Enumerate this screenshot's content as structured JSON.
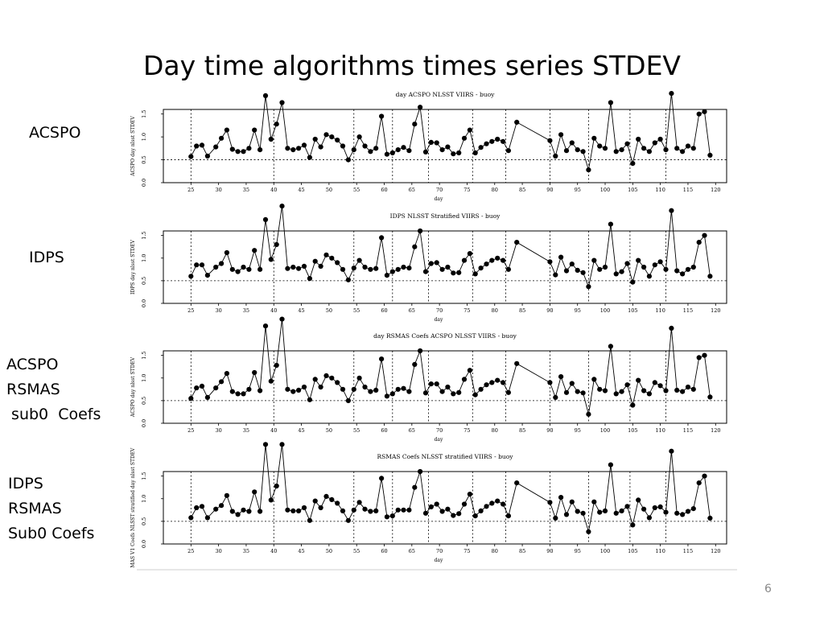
{
  "slide": {
    "title": "Day time algorithms times series STDEV",
    "page_number": "6"
  },
  "panels": [
    {
      "label": "ACSPO"
    },
    {
      "label": "IDPS"
    },
    {
      "label": "ACSPO\nRSMAS\n sub0  Coefs"
    },
    {
      "label": "IDPS\nRSMAS\nSub0 Coefs"
    }
  ],
  "chart_data": [
    {
      "type": "line",
      "title": "day ACSPO NLSST VIIRS - buoy",
      "xlabel": "day",
      "ylabel": "ACSPO day nlsst STDEV",
      "xlim": [
        20,
        122
      ],
      "ylim": [
        0,
        1.6
      ],
      "xticks": [
        25,
        30,
        35,
        40,
        45,
        50,
        55,
        60,
        65,
        70,
        75,
        80,
        85,
        90,
        95,
        100,
        105,
        110,
        115,
        120
      ],
      "yticks": [
        "0.0",
        "0.5",
        "1.0",
        "1.5"
      ],
      "reference_y": 0.5,
      "vlines": [
        25,
        40,
        54.5,
        61.5,
        68,
        76,
        82,
        90,
        97,
        104.5,
        111
      ],
      "x": [
        25,
        26,
        27,
        28,
        29.5,
        30.5,
        31.5,
        32.5,
        33.5,
        34.5,
        35.5,
        36.5,
        37.5,
        38.5,
        39.5,
        40.5,
        41.5,
        42.5,
        43.5,
        44.5,
        45.5,
        46.5,
        47.5,
        48.5,
        49.5,
        50.5,
        51.5,
        52.5,
        53.5,
        54.5,
        55.5,
        56.5,
        57.5,
        58.5,
        59.5,
        60.5,
        61.5,
        62.5,
        63.5,
        64.5,
        65.5,
        66.5,
        67.5,
        68.5,
        69.5,
        70.5,
        71.5,
        72.5,
        73.5,
        74.5,
        75.5,
        76.5,
        77.5,
        78.5,
        79.5,
        80.5,
        81.5,
        82.5,
        84,
        90,
        91,
        92,
        93,
        94,
        95,
        96,
        97,
        98,
        99,
        100,
        101,
        102,
        103,
        104,
        105,
        106,
        107,
        108,
        109,
        110,
        111,
        112,
        113,
        114,
        115,
        116,
        117,
        118,
        119
      ],
      "y": [
        0.57,
        0.8,
        0.82,
        0.58,
        0.78,
        0.97,
        1.15,
        0.73,
        0.68,
        0.68,
        0.75,
        1.15,
        0.72,
        1.9,
        0.95,
        1.28,
        1.75,
        0.75,
        0.72,
        0.75,
        0.82,
        0.55,
        0.95,
        0.78,
        1.05,
        1.0,
        0.93,
        0.8,
        0.5,
        0.72,
        1.0,
        0.8,
        0.68,
        0.75,
        1.45,
        0.62,
        0.65,
        0.72,
        0.77,
        0.7,
        1.28,
        1.65,
        0.67,
        0.88,
        0.87,
        0.72,
        0.78,
        0.63,
        0.65,
        0.97,
        1.15,
        0.65,
        0.77,
        0.85,
        0.9,
        0.95,
        0.9,
        0.7,
        1.32,
        0.92,
        0.58,
        1.05,
        0.7,
        0.87,
        0.72,
        0.68,
        0.28,
        0.97,
        0.8,
        0.75,
        1.75,
        0.68,
        0.72,
        0.85,
        0.42,
        0.95,
        0.75,
        0.68,
        0.87,
        0.95,
        0.72,
        1.95,
        0.75,
        0.68,
        0.8,
        0.75,
        1.5,
        1.55,
        0.6
      ]
    },
    {
      "type": "line",
      "title": "IDPS NLSST Stratified VIIRS - buoy",
      "xlabel": "day",
      "ylabel": "IDPS day nlsst STDEV",
      "xlim": [
        20,
        122
      ],
      "ylim": [
        0,
        1.6
      ],
      "xticks": [
        25,
        30,
        35,
        40,
        45,
        50,
        55,
        60,
        65,
        70,
        75,
        80,
        85,
        90,
        95,
        100,
        105,
        110,
        115,
        120
      ],
      "yticks": [
        "0.0",
        "0.5",
        "1.0",
        "1.5"
      ],
      "reference_y": 0.5,
      "vlines": [
        25,
        40,
        54.5,
        61.5,
        68,
        76,
        82,
        90,
        97,
        104.5,
        111
      ],
      "x": [
        25,
        26,
        27,
        28,
        29.5,
        30.5,
        31.5,
        32.5,
        33.5,
        34.5,
        35.5,
        36.5,
        37.5,
        38.5,
        39.5,
        40.5,
        41.5,
        42.5,
        43.5,
        44.5,
        45.5,
        46.5,
        47.5,
        48.5,
        49.5,
        50.5,
        51.5,
        52.5,
        53.5,
        54.5,
        55.5,
        56.5,
        57.5,
        58.5,
        59.5,
        60.5,
        61.5,
        62.5,
        63.5,
        64.5,
        65.5,
        66.5,
        67.5,
        68.5,
        69.5,
        70.5,
        71.5,
        72.5,
        73.5,
        74.5,
        75.5,
        76.5,
        77.5,
        78.5,
        79.5,
        80.5,
        81.5,
        82.5,
        84,
        90,
        91,
        92,
        93,
        94,
        95,
        96,
        97,
        98,
        99,
        100,
        101,
        102,
        103,
        104,
        105,
        106,
        107,
        108,
        109,
        110,
        111,
        112,
        113,
        114,
        115,
        116,
        117,
        118,
        119
      ],
      "y": [
        0.6,
        0.85,
        0.85,
        0.62,
        0.8,
        0.88,
        1.12,
        0.75,
        0.7,
        0.8,
        0.75,
        1.17,
        0.75,
        1.85,
        0.97,
        1.3,
        2.15,
        0.77,
        0.8,
        0.77,
        0.82,
        0.55,
        0.93,
        0.82,
        1.07,
        1.0,
        0.9,
        0.75,
        0.52,
        0.78,
        0.95,
        0.8,
        0.75,
        0.77,
        1.45,
        0.62,
        0.7,
        0.75,
        0.8,
        0.78,
        1.25,
        1.6,
        0.7,
        0.88,
        0.9,
        0.75,
        0.8,
        0.67,
        0.68,
        0.95,
        1.1,
        0.65,
        0.78,
        0.87,
        0.95,
        1.0,
        0.95,
        0.75,
        1.35,
        0.92,
        0.63,
        1.02,
        0.72,
        0.87,
        0.73,
        0.68,
        0.37,
        0.95,
        0.75,
        0.8,
        1.75,
        0.65,
        0.7,
        0.88,
        0.47,
        0.95,
        0.8,
        0.6,
        0.85,
        0.92,
        0.75,
        2.05,
        0.72,
        0.65,
        0.75,
        0.8,
        1.35,
        1.5,
        0.6
      ]
    },
    {
      "type": "line",
      "title": "day RSMAS Coefs ACSPO NLSST VIIRS - buoy",
      "xlabel": "day",
      "ylabel": "ACSPO day nlsst STDEV",
      "xlim": [
        20,
        122
      ],
      "ylim": [
        0,
        1.6
      ],
      "xticks": [
        25,
        30,
        35,
        40,
        45,
        50,
        55,
        60,
        65,
        70,
        75,
        80,
        85,
        90,
        95,
        100,
        105,
        110,
        115,
        120
      ],
      "yticks": [
        "0.0",
        "0.5",
        "1.0",
        "1.5"
      ],
      "reference_y": 0.5,
      "vlines": [
        25,
        40,
        54.5,
        61.5,
        68,
        76,
        82,
        90,
        97,
        104.5,
        111
      ],
      "x": [
        25,
        26,
        27,
        28,
        29.5,
        30.5,
        31.5,
        32.5,
        33.5,
        34.5,
        35.5,
        36.5,
        37.5,
        38.5,
        39.5,
        40.5,
        41.5,
        42.5,
        43.5,
        44.5,
        45.5,
        46.5,
        47.5,
        48.5,
        49.5,
        50.5,
        51.5,
        52.5,
        53.5,
        54.5,
        55.5,
        56.5,
        57.5,
        58.5,
        59.5,
        60.5,
        61.5,
        62.5,
        63.5,
        64.5,
        65.5,
        66.5,
        67.5,
        68.5,
        69.5,
        70.5,
        71.5,
        72.5,
        73.5,
        74.5,
        75.5,
        76.5,
        77.5,
        78.5,
        79.5,
        80.5,
        81.5,
        82.5,
        84,
        90,
        91,
        92,
        93,
        94,
        95,
        96,
        97,
        98,
        99,
        100,
        101,
        102,
        103,
        104,
        105,
        106,
        107,
        108,
        109,
        110,
        111,
        112,
        113,
        114,
        115,
        116,
        117,
        118,
        119
      ],
      "y": [
        0.55,
        0.78,
        0.82,
        0.57,
        0.78,
        0.92,
        1.1,
        0.7,
        0.65,
        0.65,
        0.75,
        1.12,
        0.72,
        2.15,
        0.93,
        1.28,
        2.3,
        0.75,
        0.7,
        0.73,
        0.8,
        0.52,
        0.97,
        0.8,
        1.05,
        1.0,
        0.9,
        0.75,
        0.5,
        0.75,
        1.0,
        0.8,
        0.7,
        0.73,
        1.42,
        0.6,
        0.65,
        0.75,
        0.77,
        0.7,
        1.3,
        1.6,
        0.67,
        0.87,
        0.87,
        0.7,
        0.8,
        0.65,
        0.68,
        0.97,
        1.17,
        0.63,
        0.75,
        0.85,
        0.9,
        0.95,
        0.9,
        0.68,
        1.32,
        0.9,
        0.57,
        1.03,
        0.68,
        0.88,
        0.7,
        0.67,
        0.2,
        0.97,
        0.75,
        0.72,
        1.7,
        0.65,
        0.7,
        0.85,
        0.4,
        0.95,
        0.72,
        0.65,
        0.9,
        0.83,
        0.72,
        2.1,
        0.73,
        0.7,
        0.8,
        0.75,
        1.45,
        1.5,
        0.58
      ]
    },
    {
      "type": "line",
      "title": "RSMAS Coefs NLSST stratified VIIRS - buoy",
      "xlabel": "day",
      "ylabel": "MAS V1 Coefs NLSST stratified day nlsst STDEV",
      "xlim": [
        20,
        122
      ],
      "ylim": [
        0,
        1.6
      ],
      "xticks": [
        25,
        30,
        35,
        40,
        45,
        50,
        55,
        60,
        65,
        70,
        75,
        80,
        85,
        90,
        95,
        100,
        105,
        110,
        115,
        120
      ],
      "yticks": [
        "0.0",
        "0.5",
        "1.0",
        "1.5"
      ],
      "reference_y": 0.5,
      "vlines": [
        25,
        40,
        54.5,
        61.5,
        68,
        76,
        82,
        90,
        97,
        104.5,
        111
      ],
      "x": [
        25,
        26,
        27,
        28,
        29.5,
        30.5,
        31.5,
        32.5,
        33.5,
        34.5,
        35.5,
        36.5,
        37.5,
        38.5,
        39.5,
        40.5,
        41.5,
        42.5,
        43.5,
        44.5,
        45.5,
        46.5,
        47.5,
        48.5,
        49.5,
        50.5,
        51.5,
        52.5,
        53.5,
        54.5,
        55.5,
        56.5,
        57.5,
        58.5,
        59.5,
        60.5,
        61.5,
        62.5,
        63.5,
        64.5,
        65.5,
        66.5,
        67.5,
        68.5,
        69.5,
        70.5,
        71.5,
        72.5,
        73.5,
        74.5,
        75.5,
        76.5,
        77.5,
        78.5,
        79.5,
        80.5,
        81.5,
        82.5,
        84,
        90,
        91,
        92,
        93,
        94,
        95,
        96,
        97,
        98,
        99,
        100,
        101,
        102,
        103,
        104,
        105,
        106,
        107,
        108,
        109,
        110,
        111,
        112,
        113,
        114,
        115,
        116,
        117,
        118,
        119
      ],
      "y": [
        0.58,
        0.8,
        0.83,
        0.58,
        0.77,
        0.85,
        1.07,
        0.72,
        0.65,
        0.75,
        0.72,
        1.15,
        0.72,
        2.2,
        0.97,
        1.28,
        2.2,
        0.75,
        0.73,
        0.73,
        0.8,
        0.52,
        0.95,
        0.8,
        1.05,
        0.98,
        0.9,
        0.73,
        0.52,
        0.75,
        0.92,
        0.77,
        0.72,
        0.73,
        1.45,
        0.6,
        0.62,
        0.75,
        0.75,
        0.75,
        1.25,
        1.6,
        0.68,
        0.82,
        0.88,
        0.72,
        0.77,
        0.63,
        0.67,
        0.88,
        1.1,
        0.62,
        0.73,
        0.83,
        0.9,
        0.95,
        0.88,
        0.62,
        1.35,
        0.92,
        0.57,
        1.03,
        0.65,
        0.93,
        0.72,
        0.68,
        0.27,
        0.93,
        0.7,
        0.73,
        1.75,
        0.68,
        0.73,
        0.83,
        0.42,
        0.97,
        0.77,
        0.58,
        0.8,
        0.82,
        0.7,
        2.05,
        0.68,
        0.65,
        0.72,
        0.78,
        1.35,
        1.5,
        0.57
      ]
    }
  ]
}
